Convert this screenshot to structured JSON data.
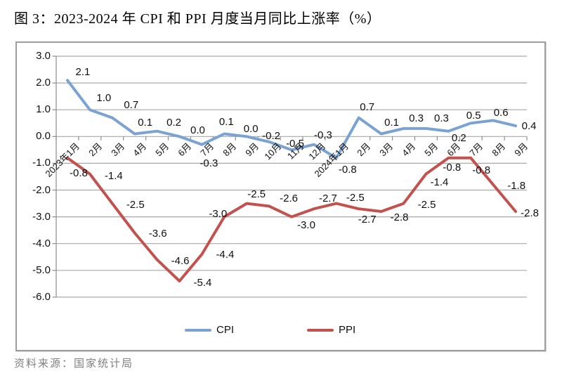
{
  "title": "图 3：2023-2024 年 CPI 和 PPI 月度当月同比上涨率（%）",
  "source": "资料来源：国家统计局",
  "chart_data": {
    "type": "line",
    "categories": [
      "2023年1月",
      "2月",
      "3月",
      "4月",
      "5月",
      "6月",
      "7月",
      "8月",
      "9月",
      "10月",
      "11月",
      "12月",
      "2024年1月",
      "2月",
      "3月",
      "4月",
      "5月",
      "6月",
      "7月",
      "8月",
      "9月"
    ],
    "series": [
      {
        "name": "CPI",
        "color": "#7aa3d4",
        "values": [
          2.1,
          1.0,
          0.7,
          0.1,
          0.2,
          0.0,
          -0.3,
          0.1,
          0.0,
          -0.2,
          -0.5,
          -0.3,
          -0.8,
          0.7,
          0.1,
          0.3,
          0.3,
          0.2,
          0.5,
          0.6,
          0.4
        ]
      },
      {
        "name": "PPI",
        "color": "#c3524e",
        "values": [
          -0.8,
          -1.4,
          -2.5,
          -3.6,
          -4.6,
          -5.4,
          -4.4,
          -3.0,
          -2.5,
          -2.6,
          -3.0,
          -2.7,
          -2.5,
          -2.7,
          -2.8,
          -2.5,
          -1.4,
          -0.8,
          -0.8,
          -1.8,
          -2.8
        ]
      }
    ],
    "y_ticks": [
      3.0,
      2.0,
      1.0,
      0.0,
      -1.0,
      -2.0,
      -3.0,
      -4.0,
      -5.0,
      -6.0
    ],
    "ylim": [
      -6.0,
      3.0
    ],
    "grid": true,
    "data_labels": true,
    "legend_position": "bottom",
    "gridline_color": "#a8a8a8",
    "axis_color": "#8c8c8c"
  }
}
